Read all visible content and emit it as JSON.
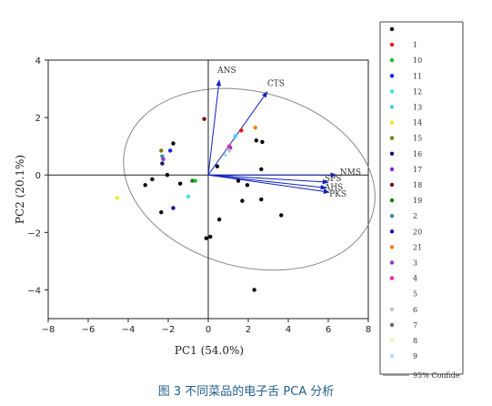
{
  "caption": "图 3  不同菜品的电子舌 PCA 分析",
  "chart_data": {
    "type": "scatter",
    "xlabel": "PC1  (54.0%)",
    "ylabel": "PC2  (20.1%)",
    "xlim": [
      -8,
      8
    ],
    "ylim": [
      -5,
      4
    ],
    "xticks": [
      -8,
      -6,
      -4,
      -2,
      0,
      2,
      4,
      6,
      8
    ],
    "yticks": [
      4,
      2,
      0,
      -2,
      -4
    ],
    "grid": false,
    "legend_position": "right",
    "ellipse": {
      "name": "95% Confide",
      "center": [
        2.05,
        -0.15
      ],
      "semi_axis_a": 6.4,
      "semi_axis_b": 3.05,
      "rotation_deg": -15,
      "color": "#888888"
    },
    "loadings": {
      "name": "Loadings",
      "color": "#1020c0",
      "vectors": [
        {
          "label": "ANS",
          "x": 0.55,
          "y": 3.3
        },
        {
          "label": "CTS",
          "x": 2.95,
          "y": 2.9
        },
        {
          "label": "NMS",
          "x": 6.4,
          "y": 0.0
        },
        {
          "label": "SPS",
          "x": 6.0,
          "y": -0.25
        },
        {
          "label": "AHS",
          "x": 5.9,
          "y": -0.45
        },
        {
          "label": "PKS",
          "x": 6.05,
          "y": -0.6
        }
      ]
    },
    "series": [
      {
        "name": "",
        "color": "#000000",
        "points": [
          [
            2.3,
            -4.0
          ],
          [
            -0.1,
            -2.2
          ],
          [
            0.1,
            -2.15
          ],
          [
            0.55,
            -1.55
          ],
          [
            1.7,
            -0.9
          ],
          [
            2.65,
            -0.85
          ],
          [
            3.65,
            -1.4
          ],
          [
            1.5,
            -0.2
          ],
          [
            1.95,
            -0.35
          ],
          [
            2.65,
            0.2
          ],
          [
            0.45,
            0.3
          ],
          [
            2.4,
            1.2
          ],
          [
            2.7,
            1.15
          ],
          [
            -1.75,
            1.1
          ],
          [
            -3.15,
            -0.35
          ],
          [
            -2.35,
            -1.3
          ],
          [
            -2.05,
            0.0
          ],
          [
            -2.8,
            -0.15
          ],
          [
            -1.4,
            -0.3
          ]
        ]
      },
      {
        "name": "1",
        "color": "#e8191b",
        "points": [
          [
            1.65,
            1.55
          ]
        ]
      },
      {
        "name": "10",
        "color": "#1fbf1f",
        "points": [
          [
            -0.65,
            -0.2
          ]
        ]
      },
      {
        "name": "11",
        "color": "#1a1aee",
        "points": [
          [
            -1.9,
            0.85
          ]
        ]
      },
      {
        "name": "12",
        "color": "#3fe0e8",
        "points": [
          [
            -1.0,
            -0.75
          ]
        ]
      },
      {
        "name": "13",
        "color": "#4fc8f0",
        "points": [
          [
            1.35,
            1.35
          ]
        ]
      },
      {
        "name": "14",
        "color": "#f0e62b",
        "points": [
          [
            -4.55,
            -0.8
          ]
        ]
      },
      {
        "name": "15",
        "color": "#7a7a10",
        "points": [
          [
            -2.35,
            0.85
          ]
        ]
      },
      {
        "name": "16",
        "color": "#10106e",
        "points": [
          [
            -2.3,
            0.4
          ]
        ]
      },
      {
        "name": "17",
        "color": "#8a1ed8",
        "points": [
          [
            1.1,
            0.95
          ]
        ]
      },
      {
        "name": "18",
        "color": "#7a1010",
        "points": [
          [
            -0.2,
            1.95
          ]
        ]
      },
      {
        "name": "19",
        "color": "#1a7a1a",
        "points": [
          [
            -0.8,
            -0.2
          ]
        ]
      },
      {
        "name": "2",
        "color": "#2f8fa0",
        "points": [
          [
            -2.3,
            0.65
          ]
        ]
      },
      {
        "name": "20",
        "color": "#10108e",
        "points": [
          [
            -1.75,
            -1.15
          ]
        ]
      },
      {
        "name": "21",
        "color": "#f07f0f",
        "points": [
          [
            2.35,
            1.65
          ]
        ]
      },
      {
        "name": "3",
        "color": "#9a2ed0",
        "points": [
          [
            -2.25,
            0.55
          ]
        ]
      },
      {
        "name": "4",
        "color": "#e02aa8",
        "points": [
          [
            1.05,
            1.0
          ]
        ]
      },
      {
        "name": "5",
        "color": "#ffffff",
        "points": []
      },
      {
        "name": "6",
        "color": "#bfbfbf",
        "points": [
          [
            1.05,
            0.85
          ]
        ]
      },
      {
        "name": "7",
        "color": "#6a6a6a",
        "points": []
      },
      {
        "name": "8",
        "color": "#f6f0b0",
        "points": []
      },
      {
        "name": "9",
        "color": "#a8e0f0",
        "points": [
          [
            0.85,
            0.7
          ]
        ]
      }
    ]
  }
}
